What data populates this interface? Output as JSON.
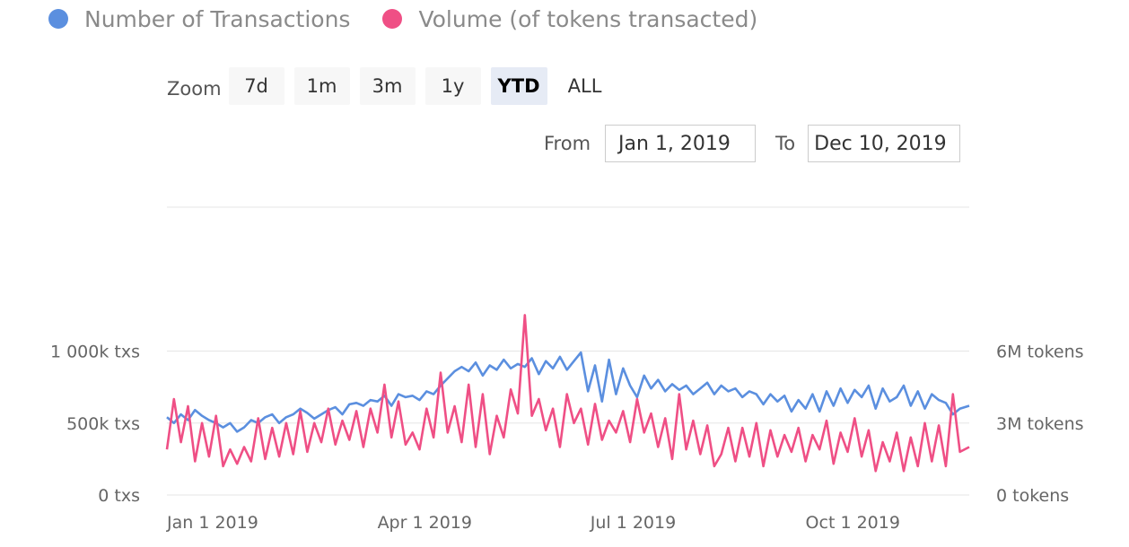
{
  "legend": [
    {
      "label": "Number of Transactions",
      "color": "#5b8fdf"
    },
    {
      "label": "Volume (of tokens transacted)",
      "color": "#ef4f85"
    }
  ],
  "zoom": {
    "label": "Zoom",
    "buttons": [
      "7d",
      "1m",
      "3m",
      "1y",
      "YTD",
      "ALL"
    ],
    "selected": "YTD"
  },
  "range": {
    "from_label": "From",
    "from_value": "Jan 1, 2019",
    "to_label": "To",
    "to_value": "Dec 10, 2019"
  },
  "chart_data": {
    "type": "line",
    "grid": true,
    "x_range": [
      "2019-01-01",
      "2019-12-10"
    ],
    "x_ticks": [
      {
        "date": "2019-01-01",
        "label": "Jan 1 2019"
      },
      {
        "date": "2019-04-01",
        "label": "Apr 1 2019"
      },
      {
        "date": "2019-07-01",
        "label": "Jul 1 2019"
      },
      {
        "date": "2019-10-01",
        "label": "Oct 1 2019"
      }
    ],
    "y_left": {
      "range": [
        0,
        2000
      ],
      "ticks": [
        {
          "value": 0,
          "label": "0 txs"
        },
        {
          "value": 500,
          "label": "500k txs"
        },
        {
          "value": 1000,
          "label": "1 000k txs"
        }
      ]
    },
    "y_right": {
      "range": [
        0,
        12
      ],
      "ticks": [
        {
          "value": 0,
          "label": "0 tokens"
        },
        {
          "value": 3,
          "label": "3M tokens"
        },
        {
          "value": 6,
          "label": "6M tokens"
        }
      ]
    },
    "series": [
      {
        "name": "Number of Transactions",
        "axis": "left",
        "color": "#5b8fdf",
        "x": [
          "2019-01-01",
          "2019-01-04",
          "2019-01-07",
          "2019-01-10",
          "2019-01-13",
          "2019-01-16",
          "2019-01-19",
          "2019-01-22",
          "2019-01-25",
          "2019-01-28",
          "2019-01-31",
          "2019-02-03",
          "2019-02-06",
          "2019-02-09",
          "2019-02-12",
          "2019-02-15",
          "2019-02-18",
          "2019-02-21",
          "2019-02-24",
          "2019-02-27",
          "2019-03-02",
          "2019-03-05",
          "2019-03-08",
          "2019-03-11",
          "2019-03-14",
          "2019-03-17",
          "2019-03-20",
          "2019-03-23",
          "2019-03-26",
          "2019-03-29",
          "2019-04-01",
          "2019-04-04",
          "2019-04-07",
          "2019-04-10",
          "2019-04-13",
          "2019-04-16",
          "2019-04-19",
          "2019-04-22",
          "2019-04-25",
          "2019-04-28",
          "2019-05-01",
          "2019-05-04",
          "2019-05-07",
          "2019-05-10",
          "2019-05-13",
          "2019-05-16",
          "2019-05-19",
          "2019-05-22",
          "2019-05-25",
          "2019-05-28",
          "2019-05-31",
          "2019-06-03",
          "2019-06-06",
          "2019-06-09",
          "2019-06-12",
          "2019-06-15",
          "2019-06-18",
          "2019-06-21",
          "2019-06-24",
          "2019-06-27",
          "2019-06-30",
          "2019-07-03",
          "2019-07-06",
          "2019-07-09",
          "2019-07-12",
          "2019-07-15",
          "2019-07-18",
          "2019-07-21",
          "2019-07-24",
          "2019-07-27",
          "2019-07-30",
          "2019-08-02",
          "2019-08-05",
          "2019-08-08",
          "2019-08-11",
          "2019-08-14",
          "2019-08-17",
          "2019-08-20",
          "2019-08-23",
          "2019-08-26",
          "2019-08-29",
          "2019-09-01",
          "2019-09-04",
          "2019-09-07",
          "2019-09-10",
          "2019-09-13",
          "2019-09-16",
          "2019-09-19",
          "2019-09-22",
          "2019-09-25",
          "2019-09-28",
          "2019-10-01",
          "2019-10-04",
          "2019-10-07",
          "2019-10-10",
          "2019-10-13",
          "2019-10-16",
          "2019-10-19",
          "2019-10-22",
          "2019-10-25",
          "2019-10-28",
          "2019-10-31",
          "2019-11-03",
          "2019-11-06",
          "2019-11-09",
          "2019-11-12",
          "2019-11-15",
          "2019-11-18",
          "2019-11-21",
          "2019-11-24",
          "2019-11-27",
          "2019-11-30",
          "2019-12-03",
          "2019-12-06",
          "2019-12-10"
        ],
        "values": [
          540,
          500,
          560,
          520,
          590,
          550,
          520,
          500,
          470,
          500,
          440,
          470,
          520,
          500,
          540,
          560,
          500,
          540,
          560,
          600,
          570,
          530,
          560,
          590,
          610,
          560,
          630,
          640,
          620,
          660,
          650,
          690,
          620,
          700,
          680,
          690,
          660,
          720,
          700,
          760,
          810,
          860,
          890,
          860,
          920,
          830,
          900,
          870,
          940,
          880,
          910,
          890,
          950,
          840,
          930,
          880,
          960,
          870,
          930,
          990,
          720,
          900,
          650,
          940,
          700,
          880,
          760,
          680,
          830,
          740,
          800,
          720,
          770,
          730,
          760,
          700,
          740,
          780,
          700,
          760,
          720,
          740,
          680,
          720,
          700,
          630,
          700,
          650,
          690,
          580,
          660,
          600,
          700,
          580,
          720,
          620,
          740,
          640,
          730,
          680,
          760,
          600,
          740,
          650,
          680,
          760,
          620,
          720,
          600,
          700,
          660,
          640,
          560,
          600,
          620
        ]
      },
      {
        "name": "Volume (of tokens transacted)",
        "axis": "right",
        "color": "#ef4f85",
        "x": [
          "2019-01-01",
          "2019-01-04",
          "2019-01-07",
          "2019-01-10",
          "2019-01-13",
          "2019-01-16",
          "2019-01-19",
          "2019-01-22",
          "2019-01-25",
          "2019-01-28",
          "2019-01-31",
          "2019-02-03",
          "2019-02-06",
          "2019-02-09",
          "2019-02-12",
          "2019-02-15",
          "2019-02-18",
          "2019-02-21",
          "2019-02-24",
          "2019-02-27",
          "2019-03-02",
          "2019-03-05",
          "2019-03-08",
          "2019-03-11",
          "2019-03-14",
          "2019-03-17",
          "2019-03-20",
          "2019-03-23",
          "2019-03-26",
          "2019-03-29",
          "2019-04-01",
          "2019-04-04",
          "2019-04-07",
          "2019-04-10",
          "2019-04-13",
          "2019-04-16",
          "2019-04-19",
          "2019-04-22",
          "2019-04-25",
          "2019-04-28",
          "2019-05-01",
          "2019-05-04",
          "2019-05-07",
          "2019-05-10",
          "2019-05-13",
          "2019-05-16",
          "2019-05-19",
          "2019-05-22",
          "2019-05-25",
          "2019-05-28",
          "2019-05-31",
          "2019-06-03",
          "2019-06-06",
          "2019-06-09",
          "2019-06-12",
          "2019-06-15",
          "2019-06-18",
          "2019-06-21",
          "2019-06-24",
          "2019-06-27",
          "2019-06-30",
          "2019-07-03",
          "2019-07-06",
          "2019-07-09",
          "2019-07-12",
          "2019-07-15",
          "2019-07-18",
          "2019-07-21",
          "2019-07-24",
          "2019-07-27",
          "2019-07-30",
          "2019-08-02",
          "2019-08-05",
          "2019-08-08",
          "2019-08-11",
          "2019-08-14",
          "2019-08-17",
          "2019-08-20",
          "2019-08-23",
          "2019-08-26",
          "2019-08-29",
          "2019-09-01",
          "2019-09-04",
          "2019-09-07",
          "2019-09-10",
          "2019-09-13",
          "2019-09-16",
          "2019-09-19",
          "2019-09-22",
          "2019-09-25",
          "2019-09-28",
          "2019-10-01",
          "2019-10-04",
          "2019-10-07",
          "2019-10-10",
          "2019-10-13",
          "2019-10-16",
          "2019-10-19",
          "2019-10-22",
          "2019-10-25",
          "2019-10-28",
          "2019-10-31",
          "2019-11-03",
          "2019-11-06",
          "2019-11-09",
          "2019-11-12",
          "2019-11-15",
          "2019-11-18",
          "2019-11-21",
          "2019-11-24",
          "2019-11-27",
          "2019-11-30",
          "2019-12-03",
          "2019-12-06",
          "2019-12-10"
        ],
        "values": [
          1.9,
          4.0,
          2.2,
          3.7,
          1.4,
          3.0,
          1.6,
          3.3,
          1.2,
          1.9,
          1.3,
          2.0,
          1.4,
          3.2,
          1.5,
          2.8,
          1.6,
          3.0,
          1.7,
          3.5,
          1.8,
          3.0,
          2.2,
          3.6,
          2.1,
          3.1,
          2.3,
          3.5,
          2.0,
          3.6,
          2.6,
          4.6,
          2.4,
          3.9,
          2.1,
          2.6,
          1.9,
          3.6,
          2.4,
          5.1,
          2.6,
          3.7,
          2.2,
          4.6,
          2.0,
          4.2,
          1.7,
          3.3,
          2.4,
          4.4,
          3.4,
          7.5,
          3.3,
          4.0,
          2.7,
          3.6,
          2.0,
          4.2,
          3.0,
          3.6,
          2.1,
          3.8,
          2.3,
          3.1,
          2.6,
          3.5,
          2.2,
          4.0,
          2.6,
          3.4,
          2.0,
          3.2,
          1.5,
          4.2,
          1.9,
          3.1,
          1.7,
          2.9,
          1.2,
          1.7,
          2.8,
          1.4,
          2.8,
          1.6,
          3.0,
          1.2,
          2.7,
          1.6,
          2.5,
          1.8,
          2.8,
          1.4,
          2.5,
          1.9,
          3.1,
          1.3,
          2.6,
          1.8,
          3.2,
          1.6,
          2.7,
          1.0,
          2.2,
          1.4,
          2.6,
          1.0,
          2.4,
          1.2,
          3.0,
          1.4,
          2.9,
          1.2,
          4.2,
          1.8,
          2.0
        ]
      }
    ]
  }
}
